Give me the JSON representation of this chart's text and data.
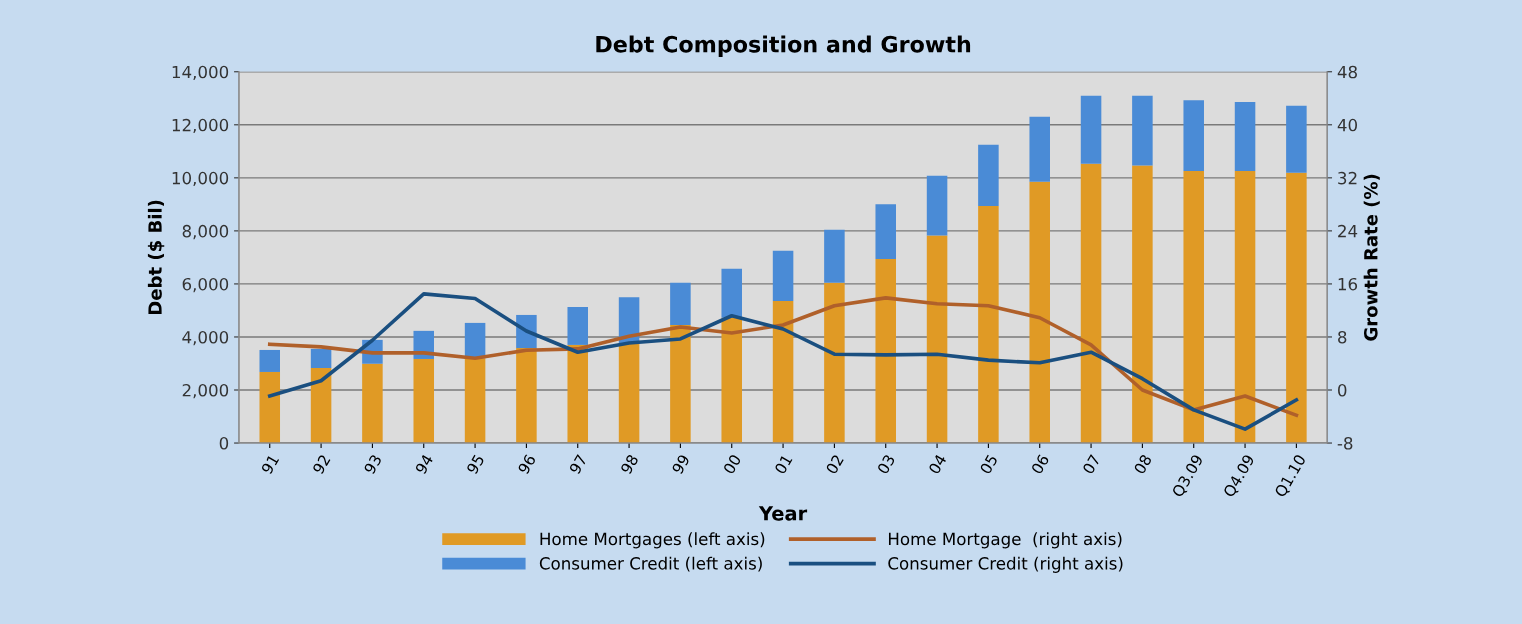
{
  "chart_data": {
    "type": "bar",
    "title": "Debt Composition and Growth",
    "xlabel": "Year",
    "ylabel": "Debt ($ Bil)",
    "y2label": "Growth Rate (%)",
    "categories": [
      "91",
      "92",
      "93",
      "94",
      "95",
      "96",
      "97",
      "98",
      "99",
      "00",
      "01",
      "02",
      "03",
      "04",
      "05",
      "06",
      "07",
      "08",
      "Q3.09",
      "Q4.09",
      "Q1.10"
    ],
    "stacked": true,
    "series": [
      {
        "name": "Home Mortgages (left axis)",
        "color": "#e09a25",
        "values": [
          2680,
          2830,
          2990,
          3170,
          3200,
          3580,
          3700,
          3770,
          4450,
          4720,
          5360,
          6040,
          6940,
          7830,
          8940,
          9850,
          10530,
          10470,
          10260,
          10260,
          10190
        ]
      },
      {
        "name": "Consumer Credit (left axis)",
        "color": "#4a8bd6",
        "values": [
          830,
          720,
          900,
          1060,
          1330,
          1250,
          1430,
          1730,
          1590,
          1850,
          1890,
          2000,
          2060,
          2250,
          2310,
          2450,
          2570,
          2630,
          2670,
          2600,
          2530
        ]
      },
      {
        "name": "Home Mortgage  (right axis)",
        "type": "line",
        "axis": "y2",
        "color": "#b0602a",
        "values": [
          6.9,
          6.5,
          5.6,
          5.6,
          4.8,
          6.0,
          6.2,
          8.1,
          9.5,
          8.6,
          9.8,
          12.7,
          13.9,
          13.0,
          12.7,
          10.9,
          6.8,
          0.0,
          -3.0,
          -0.9,
          -3.8
        ]
      },
      {
        "name": "Consumer Credit (right axis)",
        "type": "line",
        "axis": "y2",
        "color": "#1a4f80",
        "values": [
          -0.9,
          1.4,
          7.5,
          14.5,
          13.8,
          8.9,
          5.7,
          7.1,
          7.7,
          11.2,
          9.2,
          5.4,
          5.3,
          5.4,
          4.5,
          4.1,
          5.7,
          1.7,
          -3.0,
          -5.9,
          -1.5
        ]
      }
    ],
    "ylim": [
      0,
      14000
    ],
    "yticks": [
      0,
      {
        "value": 2000,
        "label": "2,000"
      },
      {
        "value": 4000,
        "label": "4,000"
      },
      {
        "value": 6000,
        "label": "6,000"
      },
      {
        "value": 8000,
        "label": "8,000"
      },
      {
        "value": 10000,
        "label": "10,000"
      },
      {
        "value": 12000,
        "label": "12,000"
      },
      {
        "value": 14000,
        "label": "14,000"
      }
    ],
    "y2lim": [
      -8,
      48
    ],
    "y2ticks": [
      -8,
      0,
      8,
      16,
      24,
      32,
      40,
      48
    ],
    "grid": "y",
    "legend": "bottom",
    "line_style": "solid",
    "marker": "none"
  }
}
